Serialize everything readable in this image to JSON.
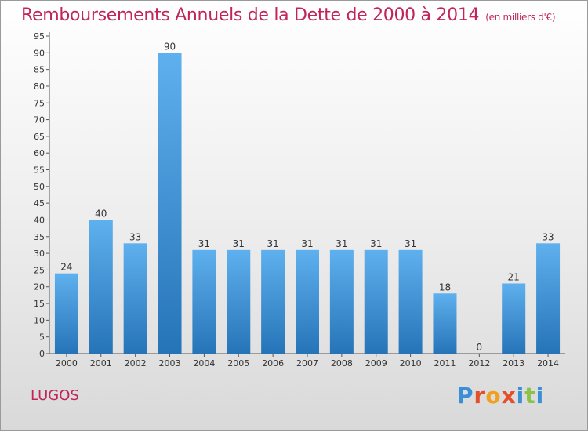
{
  "page": {
    "title": "Remboursements Annuels de la Dette de 2000 à 2014",
    "subtitle": "(en milliers d'€)",
    "location": "LUGOS",
    "logo_text": "Proxiti",
    "colors": {
      "title": "#c0245b",
      "bar_light": "#5fb0ee",
      "bar_dark": "#2674b8",
      "logo": [
        "#3b8fd6",
        "#e54e2a",
        "#f0a01c",
        "#e54e2a",
        "#3b8fd6",
        "#8bc34a",
        "#3b8fd6"
      ]
    }
  },
  "chart_data": {
    "type": "bar",
    "title": "Remboursements Annuels de la Dette de 2000 à 2014",
    "subtitle": "(en milliers d'€)",
    "categories": [
      "2000",
      "2001",
      "2002",
      "2003",
      "2004",
      "2005",
      "2006",
      "2007",
      "2008",
      "2009",
      "2010",
      "2011",
      "2012",
      "2013",
      "2014"
    ],
    "values": [
      24,
      40,
      33,
      90,
      31,
      31,
      31,
      31,
      31,
      31,
      31,
      18,
      0,
      21,
      33
    ],
    "ylim": [
      0,
      95
    ],
    "yticks": [
      0,
      5,
      10,
      15,
      20,
      25,
      30,
      35,
      40,
      45,
      50,
      55,
      60,
      65,
      70,
      75,
      80,
      85,
      90,
      95
    ],
    "grid": false,
    "legend": "none"
  }
}
